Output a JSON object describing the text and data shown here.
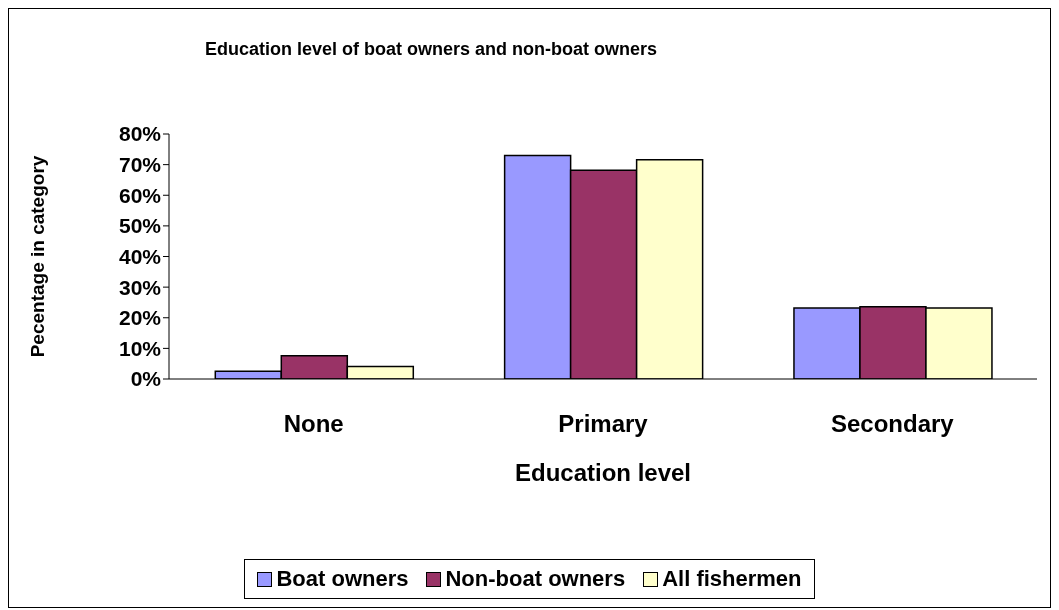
{
  "chart_data": {
    "type": "bar",
    "title": "Education level of boat owners and non-boat owners",
    "xlabel": "Education level",
    "ylabel": "Pecentage in category",
    "categories": [
      "None",
      "Primary",
      "Secondary"
    ],
    "series": [
      {
        "name": "Boat owners",
        "color": "#9999ff",
        "values": [
          2.5,
          73,
          23.2
        ]
      },
      {
        "name": "Non-boat owners",
        "color": "#993366",
        "values": [
          7.6,
          68.2,
          23.6
        ]
      },
      {
        "name": "All fishermen",
        "color": "#ffffcc",
        "values": [
          4.1,
          71.6,
          23.2
        ]
      }
    ],
    "ylim": [
      0,
      80
    ],
    "yticks": [
      {
        "value": 0,
        "label": "0%"
      },
      {
        "value": 10,
        "label": "10%"
      },
      {
        "value": 20,
        "label": "20%"
      },
      {
        "value": 30,
        "label": "30%"
      },
      {
        "value": 40,
        "label": "40%"
      },
      {
        "value": 50,
        "label": "50%"
      },
      {
        "value": 60,
        "label": "60%"
      },
      {
        "value": 70,
        "label": "70%"
      },
      {
        "value": 80,
        "label": "80%"
      }
    ],
    "legend": "bottom"
  }
}
